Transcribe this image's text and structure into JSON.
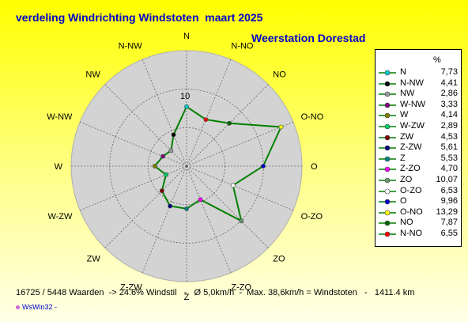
{
  "title": "verdeling Windrichting Windstoten  maart 2025",
  "station": "Weerstation Dorestad",
  "footer": "16725 / 5448 Waarden  -> 24.6% Windstil   -   Ø 5,0km/h  -  Max. 38,6km/h = Windstoten   -   1411.4 km",
  "credit": "WsWin32  -",
  "chart_data": {
    "type": "radar",
    "ring_label": "10",
    "rmax": 15,
    "unit": "%",
    "line_color": "#008000",
    "grid_fill": "#d3d3d3",
    "directions": [
      {
        "name": "N",
        "label": "N",
        "value": 7.73,
        "color": "#00cccc"
      },
      {
        "name": "N-NO",
        "label": "N-NO",
        "value": 6.55,
        "color": "#ff0000"
      },
      {
        "name": "NO",
        "label": "NO",
        "value": 7.87,
        "color": "#006600"
      },
      {
        "name": "O-NO",
        "label": "O-NO",
        "value": 13.29,
        "color": "#ffff00"
      },
      {
        "name": "O",
        "label": "O",
        "value": 9.96,
        "color": "#0000cc"
      },
      {
        "name": "O-ZO",
        "label": "O-ZO",
        "value": 6.53,
        "color": "#ffffff"
      },
      {
        "name": "ZO",
        "label": "ZO",
        "value": 10.07,
        "color": "#669966"
      },
      {
        "name": "Z-ZO",
        "label": "Z-ZO",
        "value": 4.7,
        "color": "#ff00ff"
      },
      {
        "name": "Z",
        "label": "Z",
        "value": 5.53,
        "color": "#008080"
      },
      {
        "name": "Z-ZW",
        "label": "Z-ZW",
        "value": 5.61,
        "color": "#000080"
      },
      {
        "name": "ZW",
        "label": "ZW",
        "value": 4.53,
        "color": "#800000"
      },
      {
        "name": "W-ZW",
        "label": "W-ZW",
        "value": 2.89,
        "color": "#00cc66"
      },
      {
        "name": "W",
        "label": "W",
        "value": 4.14,
        "color": "#808000"
      },
      {
        "name": "W-NW",
        "label": "W-NW",
        "value": 3.33,
        "color": "#800080"
      },
      {
        "name": "NW",
        "label": "NW",
        "value": 2.86,
        "color": "#999999"
      },
      {
        "name": "N-NW",
        "label": "N-NW",
        "value": 4.41,
        "color": "#000000"
      }
    ],
    "legend": [
      {
        "name": "N",
        "value": "7,73",
        "color": "#00cccc"
      },
      {
        "name": "N-NW",
        "value": "4,41",
        "color": "#000000"
      },
      {
        "name": "NW",
        "value": "2,86",
        "color": "#999999"
      },
      {
        "name": "W-NW",
        "value": "3,33",
        "color": "#800080"
      },
      {
        "name": "W",
        "value": "4,14",
        "color": "#808000"
      },
      {
        "name": "W-ZW",
        "value": "2,89",
        "color": "#00cc66"
      },
      {
        "name": "ZW",
        "value": "4,53",
        "color": "#800000"
      },
      {
        "name": "Z-ZW",
        "value": "5,61",
        "color": "#000080"
      },
      {
        "name": "Z",
        "value": "5,53",
        "color": "#008080"
      },
      {
        "name": "Z-ZO",
        "value": "4,70",
        "color": "#ff00ff"
      },
      {
        "name": "ZO",
        "value": "10,07",
        "color": "#669966"
      },
      {
        "name": "O-ZO",
        "value": "6,53",
        "color": "#ffffff"
      },
      {
        "name": "O",
        "value": "9,96",
        "color": "#0000cc"
      },
      {
        "name": "O-NO",
        "value": "13,29",
        "color": "#ffff00"
      },
      {
        "name": "NO",
        "value": "7,87",
        "color": "#006600"
      },
      {
        "name": "N-NO",
        "value": "6,55",
        "color": "#ff0000"
      }
    ]
  }
}
